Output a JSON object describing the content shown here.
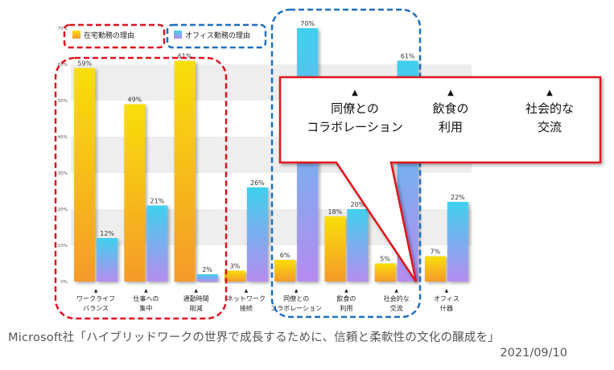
{
  "chart_data": {
    "type": "bar",
    "categories": [
      "ワークライフ\nバランス",
      "仕事への\n集中",
      "通勤時間\n削減",
      "ネットワーク\n接続",
      "同僚との\nコラボレーション",
      "飲食の\n利用",
      "社会的な\n交流",
      "オフィス\n什器"
    ],
    "series": [
      {
        "name": "在宅勤務の理由",
        "values": [
          59,
          49,
          61,
          3,
          6,
          18,
          5,
          7
        ],
        "labels": [
          "59%",
          "49%",
          "61%",
          "3%",
          "6%",
          "18%",
          "5%",
          "7%"
        ]
      },
      {
        "name": "オフィス勤務の理由",
        "values": [
          12,
          21,
          2,
          26,
          70,
          20,
          61,
          22
        ],
        "labels": [
          "12%",
          "21%",
          "2%",
          "26%",
          "70%",
          "20%",
          "61%",
          "22%"
        ]
      }
    ],
    "ylim": [
      0,
      70
    ],
    "yticks": [
      0,
      10,
      20,
      30,
      40,
      50,
      60,
      70
    ],
    "ytick_labels": [
      "0%",
      "10%",
      "20%",
      "30%",
      "40%",
      "50%",
      "60%",
      "70%"
    ],
    "grid": true,
    "legend_position": "top-left",
    "colors": {
      "home_top": "#f9df0a",
      "home_bottom": "#f59a2a",
      "office_top": "#3fd0ee",
      "office_bottom": "#b68cf0",
      "highlight_red": "#e0121e",
      "highlight_blue": "#1f6fc0"
    },
    "callout": {
      "items": [
        "同僚との\nコラボレーション",
        "飲食の\n利用",
        "社会的な\n交流"
      ],
      "marker": "▲"
    }
  },
  "source": {
    "text": "Microsoft社「ハイブリッドワークの世界で成長するために、信頼と柔軟性の文化の醸成を」",
    "date": "2021/09/10"
  }
}
